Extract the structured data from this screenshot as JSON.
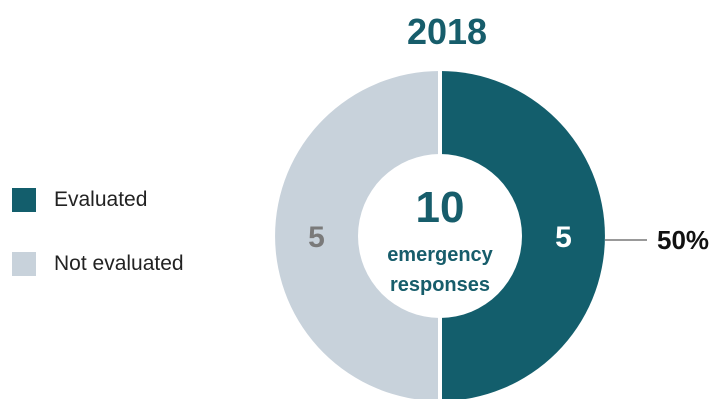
{
  "chart_data": {
    "type": "pie",
    "title": "2018",
    "categories": [
      "Evaluated",
      "Not evaluated"
    ],
    "values": [
      5,
      5
    ],
    "colors": [
      "#135e6c",
      "#c8d2db"
    ],
    "total": "10",
    "center_label_lines": [
      "emergency",
      "responses"
    ],
    "annotation": "50%",
    "legend_position": "left"
  }
}
